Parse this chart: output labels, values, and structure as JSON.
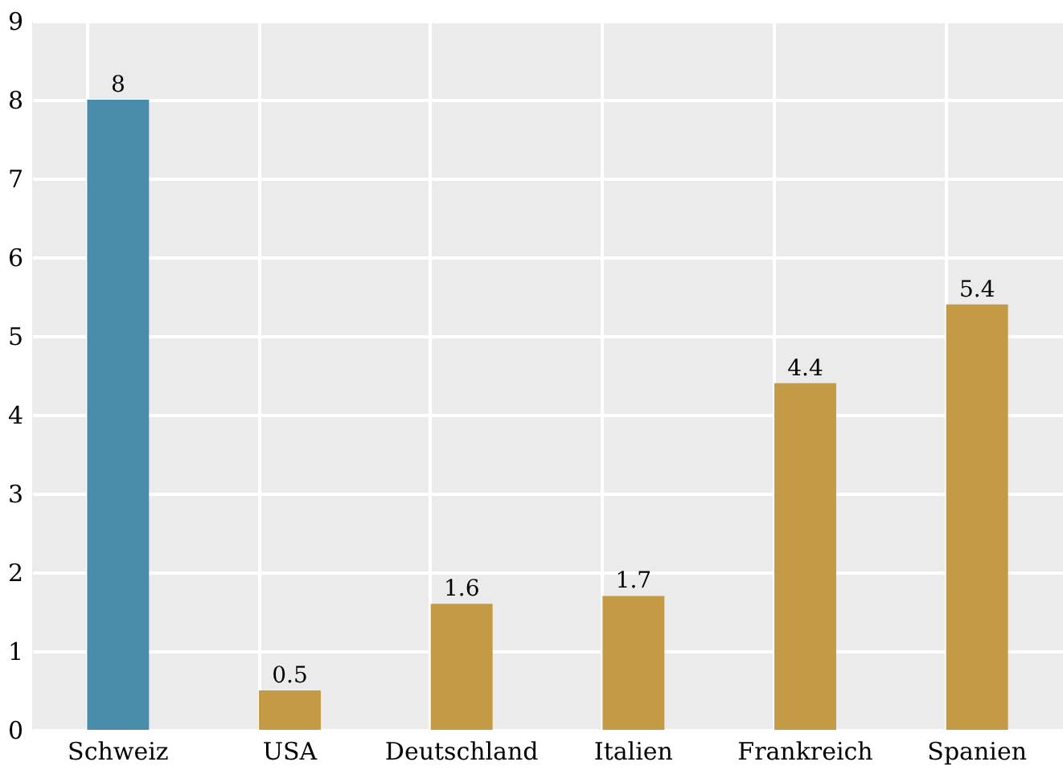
{
  "chart_data": {
    "type": "bar",
    "categories": [
      "Schweiz",
      "USA",
      "Deutschland",
      "Italien",
      "Frankreich",
      "Spanien"
    ],
    "values": [
      8,
      0.5,
      1.6,
      1.7,
      4.4,
      5.4
    ],
    "colors": [
      "#4a8dab",
      "#c49a45",
      "#c49a45",
      "#c49a45",
      "#c49a45",
      "#c49a45"
    ],
    "ylim": [
      0,
      9
    ],
    "yticks": [
      0,
      1,
      2,
      3,
      4,
      5,
      6,
      7,
      8,
      9
    ],
    "grid": true,
    "data_labels": true
  }
}
